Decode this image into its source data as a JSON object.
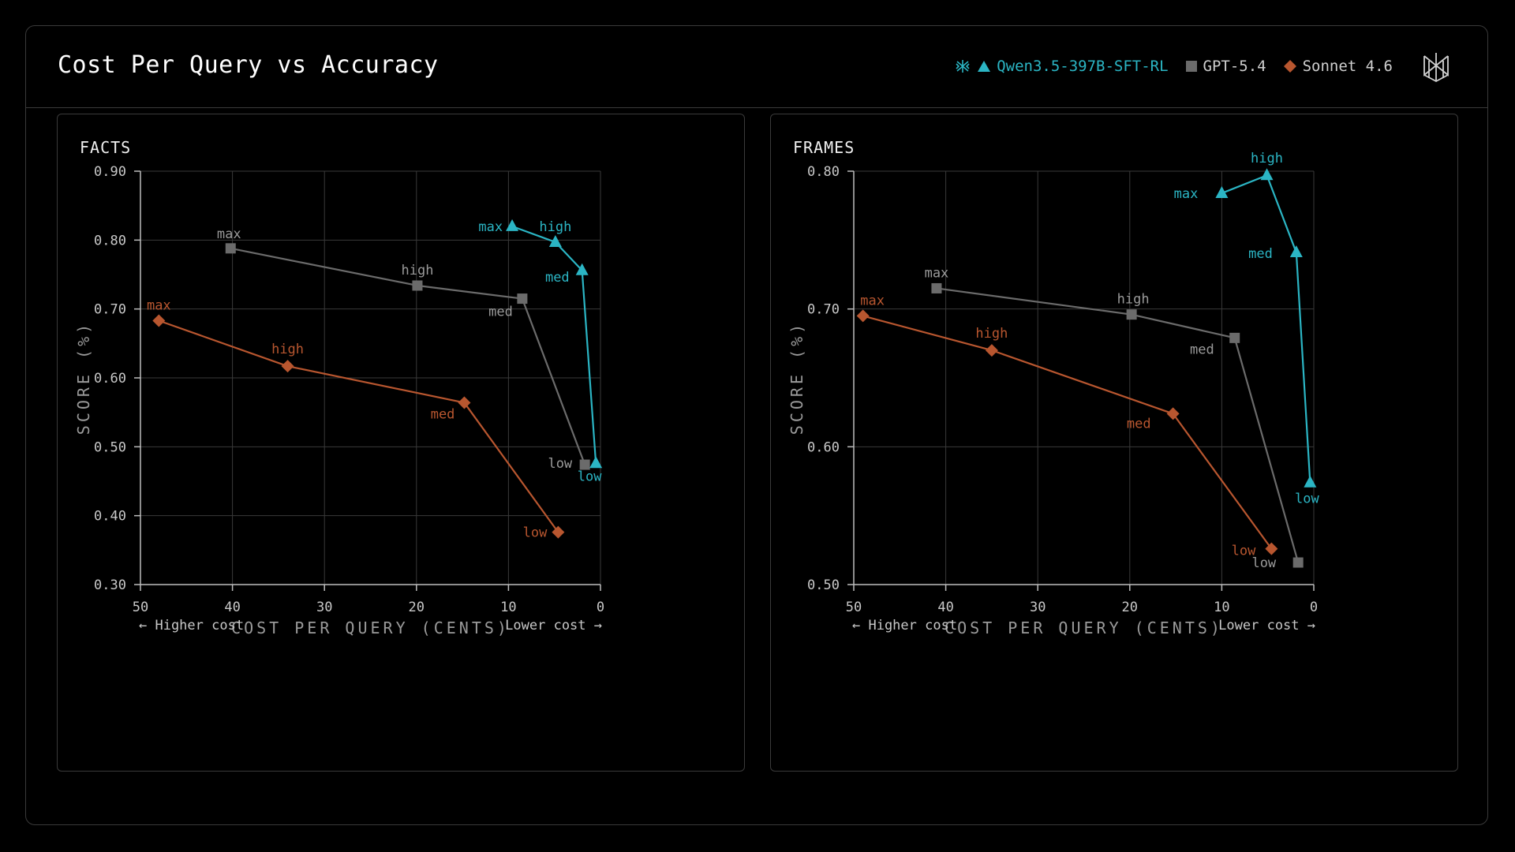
{
  "title": "Cost Per Query vs Accuracy",
  "legend": [
    {
      "name": "Qwen3.5-397B-SFT-RL",
      "color": "#2bb5c4",
      "marker": "triangle",
      "icon": "brain-icon"
    },
    {
      "name": "GPT-5.4",
      "color": "#6b6b6b",
      "marker": "square"
    },
    {
      "name": "Sonnet 4.6",
      "color": "#b8562f",
      "marker": "diamond"
    }
  ],
  "brand_icon": "logo-icon",
  "colors": {
    "qwen": "#2bb5c4",
    "gpt": "#6b6b6b",
    "sonnet": "#b8562f",
    "gpt_label": "#9a9a9a",
    "grid": "#3a3a3a"
  },
  "chart_data": [
    {
      "type": "line",
      "title": "FACTS",
      "xlabel": "COST PER QUERY (CENTS)",
      "ylabel": "SCORE (%)",
      "x_note_left": "← Higher cost",
      "x_note_right": "Lower cost →",
      "xlim": [
        50,
        0
      ],
      "ylim": [
        0.3,
        0.9
      ],
      "xticks": [
        "50",
        "40",
        "30",
        "20",
        "10",
        "0"
      ],
      "yticks": [
        "0.90",
        "0.80",
        "0.70",
        "0.60",
        "0.50",
        "0.40",
        "0.30"
      ],
      "grid": true,
      "series": [
        {
          "name": "GPT-5.4",
          "marker": "square",
          "points": [
            {
              "label": "max",
              "x": 40.2,
              "y": 0.788
            },
            {
              "label": "high",
              "x": 19.9,
              "y": 0.734
            },
            {
              "label": "med",
              "x": 8.5,
              "y": 0.715
            },
            {
              "label": "low",
              "x": 1.7,
              "y": 0.474
            }
          ]
        },
        {
          "name": "Sonnet 4.6",
          "marker": "diamond",
          "points": [
            {
              "label": "max",
              "x": 48.0,
              "y": 0.683
            },
            {
              "label": "high",
              "x": 34.0,
              "y": 0.617
            },
            {
              "label": "med",
              "x": 14.8,
              "y": 0.564
            },
            {
              "label": "low",
              "x": 4.6,
              "y": 0.376
            }
          ]
        },
        {
          "name": "Qwen3.5-397B-SFT-RL",
          "marker": "triangle",
          "points": [
            {
              "label": "max",
              "x": 9.6,
              "y": 0.82
            },
            {
              "label": "high",
              "x": 4.9,
              "y": 0.797
            },
            {
              "label": "med",
              "x": 2.0,
              "y": 0.756
            },
            {
              "label": "low",
              "x": 0.5,
              "y": 0.476
            }
          ]
        }
      ]
    },
    {
      "type": "line",
      "title": "FRAMES",
      "xlabel": "COST PER QUERY (CENTS)",
      "ylabel": "SCORE (%)",
      "x_note_left": "← Higher cost",
      "x_note_right": "Lower cost →",
      "xlim": [
        50,
        0
      ],
      "ylim": [
        0.5,
        0.8
      ],
      "xticks": [
        "50",
        "40",
        "30",
        "20",
        "10",
        "0"
      ],
      "yticks": [
        "0.80",
        "0.70",
        "0.60",
        "0.50"
      ],
      "grid": true,
      "series": [
        {
          "name": "GPT-5.4",
          "marker": "square",
          "points": [
            {
              "label": "max",
              "x": 41.0,
              "y": 0.715
            },
            {
              "label": "high",
              "x": 19.8,
              "y": 0.696
            },
            {
              "label": "med",
              "x": 8.6,
              "y": 0.679
            },
            {
              "label": "low",
              "x": 1.7,
              "y": 0.516
            }
          ]
        },
        {
          "name": "Sonnet 4.6",
          "marker": "diamond",
          "points": [
            {
              "label": "max",
              "x": 49.0,
              "y": 0.695
            },
            {
              "label": "high",
              "x": 35.0,
              "y": 0.67
            },
            {
              "label": "med",
              "x": 15.3,
              "y": 0.624
            },
            {
              "label": "low",
              "x": 4.6,
              "y": 0.526
            }
          ]
        },
        {
          "name": "Qwen3.5-397B-SFT-RL",
          "marker": "triangle",
          "points": [
            {
              "label": "max",
              "x": 10.0,
              "y": 0.784
            },
            {
              "label": "high",
              "x": 5.1,
              "y": 0.797
            },
            {
              "label": "med",
              "x": 1.9,
              "y": 0.741
            },
            {
              "label": "low",
              "x": 0.4,
              "y": 0.574
            }
          ]
        }
      ]
    }
  ]
}
